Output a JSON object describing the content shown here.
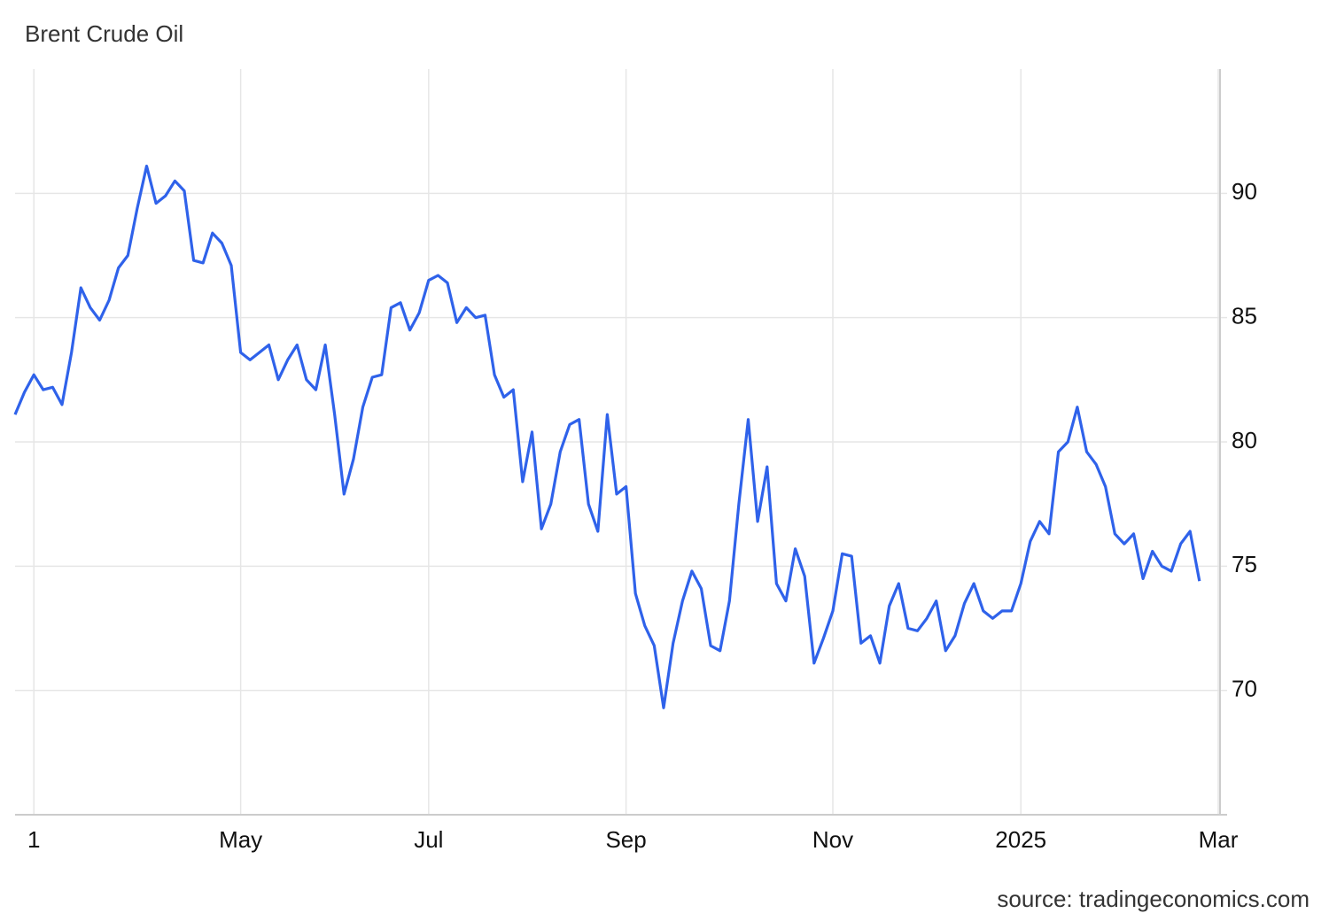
{
  "chart_data": {
    "type": "line",
    "title": "Brent Crude Oil",
    "source": "source: tradingeconomics.com",
    "categories": [
      null,
      null,
      "1",
      null,
      null,
      null,
      null,
      null,
      null,
      null,
      null,
      null,
      null,
      null,
      null,
      null,
      null,
      null,
      null,
      null,
      null,
      null,
      null,
      null,
      "May",
      null,
      null,
      null,
      null,
      null,
      null,
      null,
      null,
      null,
      null,
      null,
      null,
      null,
      null,
      null,
      null,
      null,
      null,
      null,
      "Jul",
      null,
      null,
      null,
      null,
      null,
      null,
      null,
      null,
      null,
      null,
      null,
      null,
      null,
      null,
      null,
      null,
      null,
      null,
      null,
      null,
      "Sep",
      null,
      null,
      null,
      null,
      null,
      null,
      null,
      null,
      null,
      null,
      null,
      null,
      null,
      null,
      null,
      null,
      null,
      null,
      null,
      null,
      null,
      "Nov",
      null,
      null,
      null,
      null,
      null,
      null,
      null,
      null,
      null,
      null,
      null,
      null,
      null,
      null,
      null,
      null,
      null,
      null,
      null,
      "2025",
      null,
      null,
      null,
      null,
      null,
      null,
      null,
      null,
      null,
      null,
      null,
      null,
      null,
      null,
      null,
      null,
      null,
      null,
      null,
      null,
      "Mar"
    ],
    "series": [
      {
        "name": "Brent Crude Oil",
        "color": "#2f62ea",
        "values": [
          81.1,
          82.0,
          82.7,
          82.1,
          82.2,
          81.5,
          83.6,
          86.2,
          85.4,
          84.9,
          85.7,
          87.0,
          87.5,
          89.4,
          91.1,
          89.6,
          89.9,
          90.5,
          90.1,
          87.3,
          87.2,
          88.4,
          88.0,
          87.1,
          83.6,
          83.3,
          83.6,
          83.9,
          82.5,
          83.3,
          83.9,
          82.5,
          82.1,
          83.9,
          81.1,
          77.9,
          79.3,
          81.4,
          82.6,
          82.7,
          85.4,
          85.6,
          84.5,
          85.2,
          86.5,
          86.7,
          86.4,
          84.8,
          85.4,
          85.0,
          85.1,
          82.7,
          81.8,
          82.1,
          78.4,
          80.4,
          76.5,
          77.5,
          79.6,
          80.7,
          80.9,
          77.5,
          76.4,
          81.1,
          77.9,
          78.2,
          73.9,
          72.6,
          71.8,
          69.3,
          71.9,
          73.6,
          74.8,
          74.1,
          71.8,
          71.6,
          73.6,
          77.5,
          80.9,
          76.8,
          79.0,
          74.3,
          73.6,
          75.7,
          74.6,
          71.1,
          72.1,
          73.2,
          75.5,
          75.4,
          71.9,
          72.2,
          71.1,
          73.4,
          74.3,
          72.5,
          72.4,
          72.9,
          73.6,
          71.6,
          72.2,
          73.5,
          74.3,
          73.2,
          72.9,
          73.2,
          73.2,
          74.3,
          76.0,
          76.8,
          76.3,
          79.6,
          80.0,
          81.4,
          79.6,
          79.1,
          78.2,
          76.3,
          75.9,
          76.3,
          74.5,
          75.6,
          75.0,
          74.8,
          75.9,
          76.4,
          74.4,
          null,
          null
        ]
      }
    ],
    "ylim": [
      65,
      95
    ],
    "yticks": [
      70,
      75,
      80,
      85,
      90
    ],
    "grid": true
  }
}
